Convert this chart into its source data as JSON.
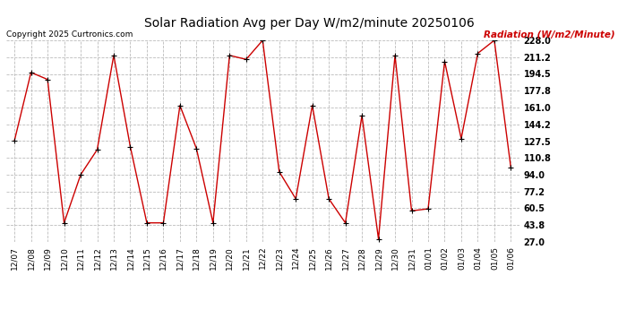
{
  "title": "Solar Radiation Avg per Day W/m2/minute 20250106",
  "copyright": "Copyright 2025 Curtronics.com",
  "legend_label": "Radiation (W/m2/Minute)",
  "dates": [
    "12/07",
    "12/08",
    "12/09",
    "12/10",
    "12/11",
    "12/12",
    "12/13",
    "12/14",
    "12/15",
    "12/16",
    "12/17",
    "12/18",
    "12/19",
    "12/20",
    "12/21",
    "12/22",
    "12/23",
    "12/24",
    "12/25",
    "12/26",
    "12/27",
    "12/28",
    "12/29",
    "12/30",
    "12/31",
    "01/01",
    "01/02",
    "01/03",
    "01/04",
    "01/05",
    "01/06"
  ],
  "values": [
    128,
    196,
    189,
    46,
    94,
    119,
    213,
    122,
    46,
    46,
    163,
    120,
    46,
    213,
    209,
    228,
    97,
    70,
    163,
    70,
    46,
    153,
    30,
    213,
    58,
    60,
    207,
    130,
    215,
    228,
    101
  ],
  "line_color": "#cc0000",
  "marker_color": "#000000",
  "bg_color": "#ffffff",
  "grid_color": "#bbbbbb",
  "title_color": "#000000",
  "copyright_color": "#000000",
  "legend_color": "#cc0000",
  "ylim": [
    27.0,
    228.0
  ],
  "yticks": [
    27.0,
    43.8,
    60.5,
    77.2,
    94.0,
    110.8,
    127.5,
    144.2,
    161.0,
    177.8,
    194.5,
    211.2,
    228.0
  ]
}
